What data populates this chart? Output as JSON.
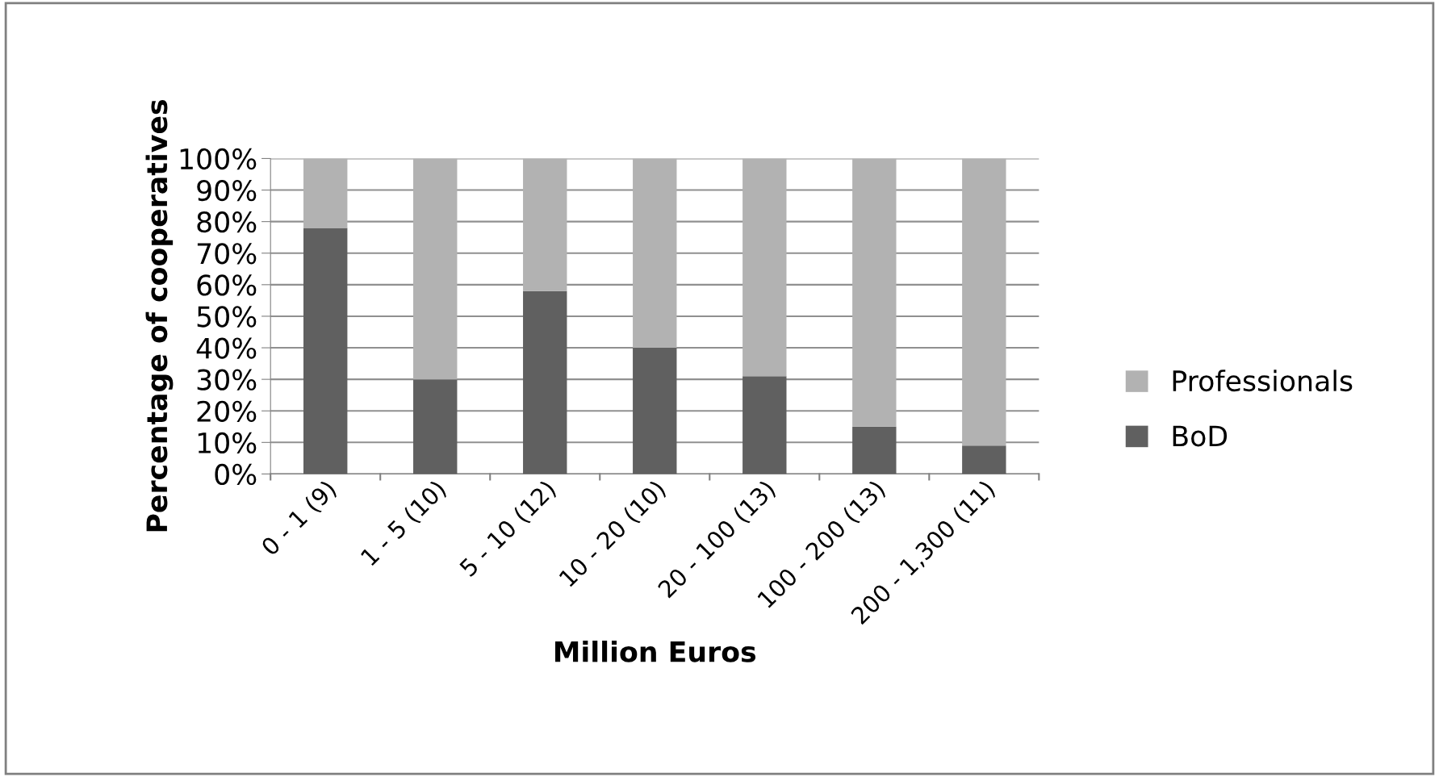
{
  "chart_data": {
    "type": "bar",
    "stacked": true,
    "xlabel": "Million Euros",
    "ylabel": "Percentage of cooperatives",
    "categories": [
      "0 - 1 (9)",
      "1 - 5 (10)",
      "5 - 10 (12)",
      "10 - 20 (10)",
      "20 - 100 (13)",
      "100 - 200 (13)",
      "200 - 1,300 (11)"
    ],
    "series": [
      {
        "name": "BoD",
        "color": "#606060",
        "values": [
          78,
          30,
          58,
          40,
          31,
          15,
          9
        ]
      },
      {
        "name": "Professionals",
        "color": "#b2b2b2",
        "values": [
          22,
          70,
          42,
          60,
          69,
          85,
          91
        ]
      }
    ],
    "ylim": [
      0,
      100
    ],
    "yticks": [
      {
        "value": 0,
        "label": "0%"
      },
      {
        "value": 10,
        "label": "10%"
      },
      {
        "value": 20,
        "label": "20%"
      },
      {
        "value": 30,
        "label": "30%"
      },
      {
        "value": 40,
        "label": "40%"
      },
      {
        "value": 50,
        "label": "50%"
      },
      {
        "value": 60,
        "label": "60%"
      },
      {
        "value": 70,
        "label": "70%"
      },
      {
        "value": 80,
        "label": "80%"
      },
      {
        "value": 90,
        "label": "90%"
      },
      {
        "value": 100,
        "label": "100%"
      }
    ],
    "grid": "y",
    "legend": "right"
  }
}
